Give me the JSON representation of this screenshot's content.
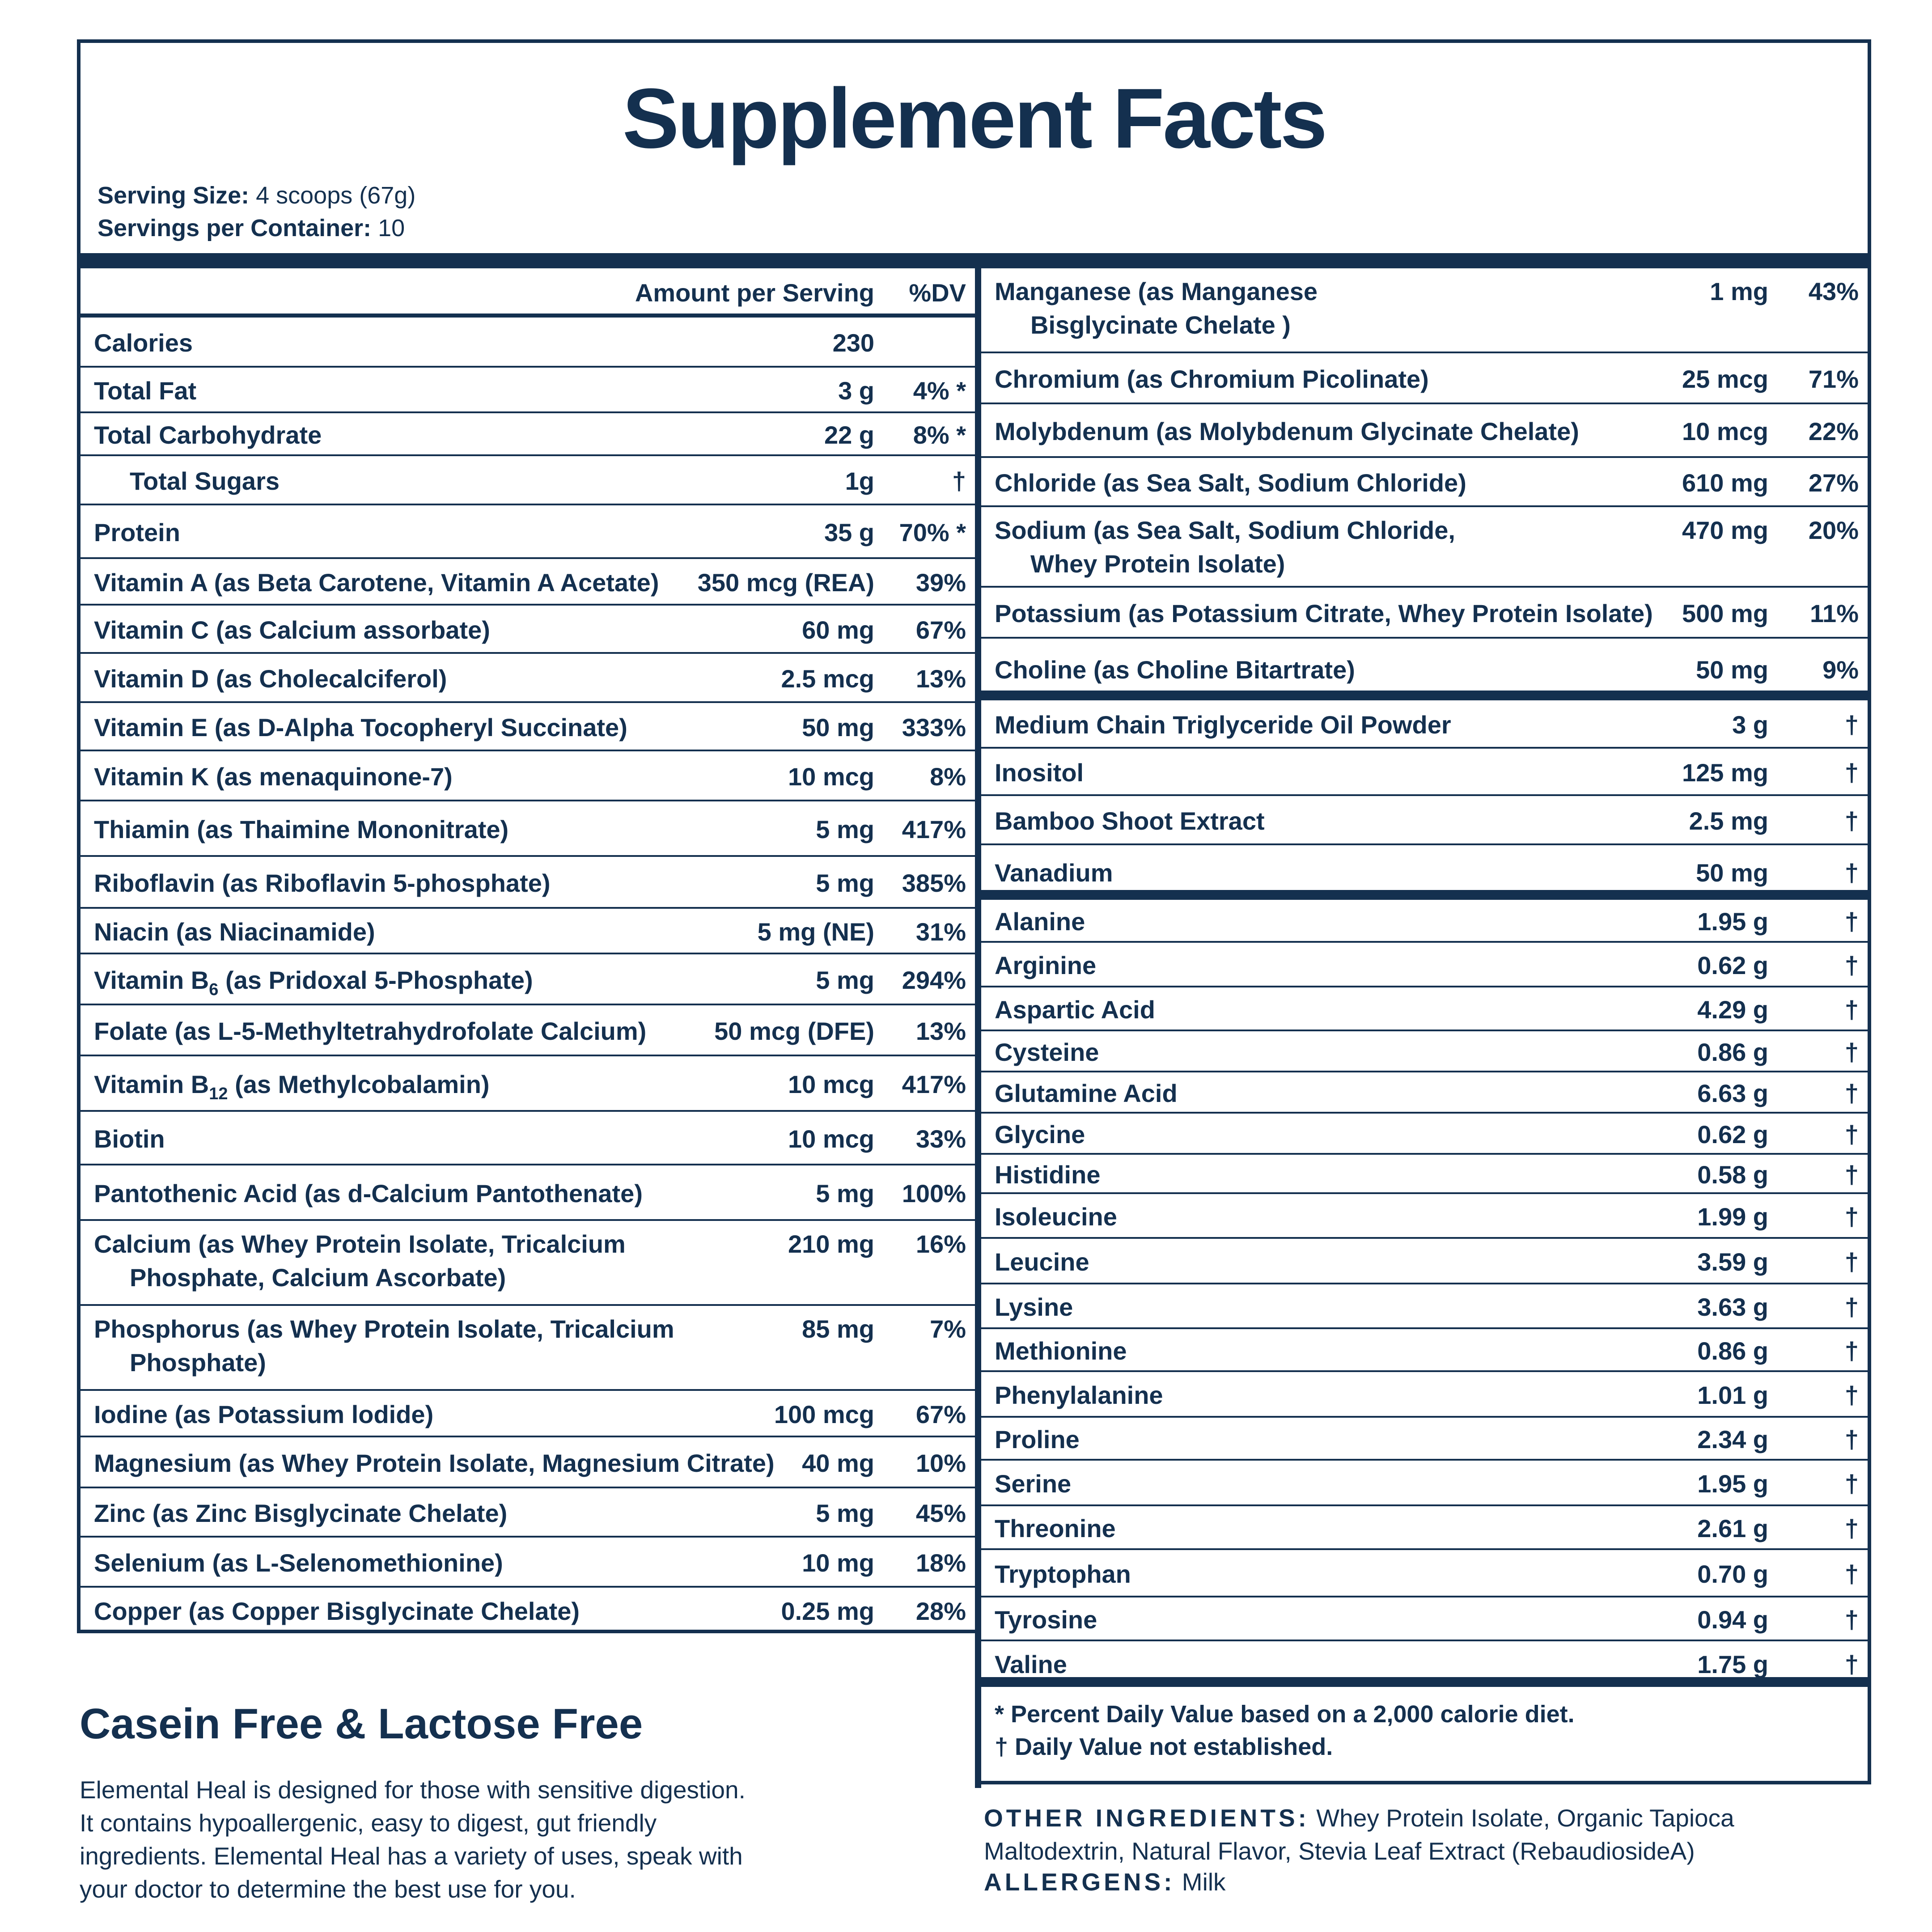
{
  "title": "Supplement Facts",
  "serving_size": {
    "label": "Serving Size:",
    "value": " 4 scoops (67g)"
  },
  "servings_per_container": {
    "label": "Servings per Container:",
    "value": " 10"
  },
  "header": {
    "amount": "Amount per Serving",
    "dv": "%DV"
  },
  "left_rows": [
    {
      "name": "Calories",
      "amount": "230",
      "dv": "",
      "h": 112
    },
    {
      "name": "Total Fat",
      "amount": "3 g",
      "dv": "4% *",
      "h": 102
    },
    {
      "name": "Total Carbohydrate",
      "amount": "22 g",
      "dv": "8% *",
      "h": 96
    },
    {
      "name": "Total Sugars",
      "amount": "1g",
      "dv": "†",
      "h": 110,
      "indent": true
    },
    {
      "name": "Protein",
      "amount": "35 g",
      "dv": "70% *",
      "h": 120
    },
    {
      "name": "Vitamin A (as Beta Carotene, Vitamin A Acetate)",
      "amount": "350 mcg (REA)",
      "dv": "39%",
      "h": 104
    },
    {
      "name": "Vitamin C (as Calcium assorbate)",
      "amount": "60 mg",
      "dv": "67%",
      "h": 108
    },
    {
      "name": "Vitamin D (as Cholecalciferol)",
      "amount": "2.5 mcg",
      "dv": "13%",
      "h": 110
    },
    {
      "name": "Vitamin E (as D-Alpha Tocopheryl Succinate)",
      "amount": "50 mg",
      "dv": "333%",
      "h": 108
    },
    {
      "name": "Vitamin K (as menaquinone-7)",
      "amount": "10 mcg",
      "dv": "8%",
      "h": 112
    },
    {
      "name": "Thiamin (as Thaimine Mononitrate)",
      "amount": "5 mg",
      "dv": "417%",
      "h": 124
    },
    {
      "name": "Riboflavin (as Riboflavin 5-phosphate)",
      "amount": "5 mg",
      "dv": "385%",
      "h": 116
    },
    {
      "name": "Niacin (as Niacinamide)",
      "amount": "5 mg (NE)",
      "dv": "31%",
      "h": 102
    },
    {
      "name": "Vitamin B",
      "sub": "6",
      "name_rest": " (as Pridoxal 5-Phosphate)",
      "amount": "5 mg",
      "dv": "294%",
      "h": 114
    },
    {
      "name": "Folate (as L-5-Methyltetrahydrofolate Calcium)",
      "amount": "50 mcg (DFE)",
      "dv": "13%",
      "h": 114
    },
    {
      "name": "Vitamin B",
      "sub": "12",
      "name_rest": " (as Methylcobalamin)",
      "amount": "10 mcg",
      "dv": "417%",
      "h": 124
    },
    {
      "name": "Biotin",
      "amount": "10 mcg",
      "dv": "33%",
      "h": 120
    },
    {
      "name": "Pantothenic Acid (as d-Calcium Pantothenate)",
      "amount": "5 mg",
      "dv": "100%",
      "h": 124
    },
    {
      "name": "Calcium (as Whey Protein Isolate, Tricalcium",
      "name2": "Phosphate,  Calcium Ascorbate)",
      "amount": "210 mg",
      "dv": "16%",
      "h": 190
    },
    {
      "name": "Phosphorus (as Whey Protein Isolate, Tricalcium",
      "name2": "Phosphate)",
      "amount": "85 mg",
      "dv": "7%",
      "h": 190
    },
    {
      "name": "Iodine (as Potassium lodide)",
      "amount": "100 mcg",
      "dv": "67%",
      "h": 104
    },
    {
      "name": "Magnesium (as Whey Protein Isolate, Magnesium Citrate)",
      "amount": "40 mg",
      "dv": "10%",
      "h": 114
    },
    {
      "name": "Zinc (as Zinc Bisglycinate Chelate)",
      "amount": "5 mg",
      "dv": "45%",
      "h": 110
    },
    {
      "name": "Selenium (as L-Selenomethionine)",
      "amount": "10 mg",
      "dv": "18%",
      "h": 112
    },
    {
      "name": "Copper (as Copper Bisglycinate Chelate)",
      "amount": "0.25 mg",
      "dv": "28%",
      "h": 104,
      "last": true
    }
  ],
  "right_minerals": [
    {
      "name": "Manganese (as Manganese",
      "name2": "Bisglycinate Chelate )",
      "amount": "1 mg",
      "dv": "43%",
      "h": 190
    },
    {
      "name": "Chromium (as Chromium Picolinate)",
      "amount": "25 mcg",
      "dv": "71%",
      "h": 114
    },
    {
      "name": "Molybdenum (as Molybdenum Glycinate Chelate)",
      "amount": "10 mcg",
      "dv": "22%",
      "h": 120
    },
    {
      "name": "Chloride (as Sea Salt, Sodium Chloride)",
      "amount": "610 mg",
      "dv": "27%",
      "h": 110
    },
    {
      "name": "Sodium (as Sea Salt, Sodium Chloride,",
      "name2": "Whey Protein Isolate)",
      "amount": "470 mg",
      "dv": "20%",
      "h": 180
    },
    {
      "name": "Potassium (as Potassium Citrate, Whey Protein Isolate)",
      "amount": "500 mg",
      "dv": "11%",
      "h": 114
    },
    {
      "name": "Choline (as Choline Bitartrate)",
      "amount": "50 mg",
      "dv": "9%",
      "h": 138,
      "thick": true
    }
  ],
  "right_other": [
    {
      "name": "Medium Chain Triglyceride Oil Powder",
      "amount": "3 g",
      "dv": "†",
      "h": 108
    },
    {
      "name": "Inositol",
      "amount": "125 mg",
      "dv": "†",
      "h": 106
    },
    {
      "name": "Bamboo Shoot Extract",
      "amount": "2.5 mg",
      "dv": "†",
      "h": 110
    },
    {
      "name": "Vanadium",
      "amount": "50 mg",
      "dv": "†",
      "h": 122,
      "thick": true
    }
  ],
  "right_amino": [
    {
      "name": "Alanine",
      "amount": "1.95 g",
      "dv": "†",
      "h": 96
    },
    {
      "name": "Arginine",
      "amount": "0.62 g",
      "dv": "†",
      "h": 100
    },
    {
      "name": "Aspartic Acid",
      "amount": "4.29 g",
      "dv": "†",
      "h": 98
    },
    {
      "name": "Cysteine",
      "amount": "0.86 g",
      "dv": "†",
      "h": 92
    },
    {
      "name": "Glutamine Acid",
      "amount": "6.63 g",
      "dv": "†",
      "h": 92
    },
    {
      "name": "Glycine",
      "amount": "0.62 g",
      "dv": "†",
      "h": 92
    },
    {
      "name": "Histidine",
      "amount": "0.58 g",
      "dv": "†",
      "h": 88
    },
    {
      "name": "Isoleucine",
      "amount": "1.99 g",
      "dv": "†",
      "h": 100
    },
    {
      "name": "Leucine",
      "amount": "3.59 g",
      "dv": "†",
      "h": 102
    },
    {
      "name": "Lysine",
      "amount": "3.63 g",
      "dv": "†",
      "h": 100
    },
    {
      "name": "Methionine",
      "amount": "0.86 g",
      "dv": "†",
      "h": 96
    },
    {
      "name": "Phenylalanine",
      "amount": "1.01 g",
      "dv": "†",
      "h": 102
    },
    {
      "name": "Proline",
      "amount": "2.34 g",
      "dv": "†",
      "h": 96
    },
    {
      "name": "Serine",
      "amount": "1.95 g",
      "dv": "†",
      "h": 102
    },
    {
      "name": "Threonine",
      "amount": "2.61 g",
      "dv": "†",
      "h": 98
    },
    {
      "name": "Tryptophan",
      "amount": "0.70 g",
      "dv": "†",
      "h": 106
    },
    {
      "name": "Tyrosine",
      "amount": "0.94 g",
      "dv": "†",
      "h": 98
    },
    {
      "name": "Valine",
      "amount": "1.75 g",
      "dv": "†",
      "h": 102,
      "thick": true
    }
  ],
  "footnote": [
    "* Percent Daily Value based on a 2,000 calorie diet.",
    "† Daily Value not established."
  ],
  "casein": {
    "title": "Casein Free & Lactose Free",
    "lines": [
      "Elemental Heal is designed for those with sensitive digestion.",
      "It contains hypoallergenic, easy to digest, gut friendly",
      "ingredients. Elemental Heal has a variety of uses, speak with",
      "your doctor to determine the best use for you."
    ]
  },
  "other_ingredients": {
    "label": "OTHER INGREDIENTS:",
    "line1": " Whey Protein Isolate, Organic Tapioca",
    "line2": "Maltodextrin, Natural Flavor, Stevia Leaf Extract (RebaudiosideA)"
  },
  "allergens": {
    "label": "ALLERGENS:",
    "value": " Milk"
  }
}
